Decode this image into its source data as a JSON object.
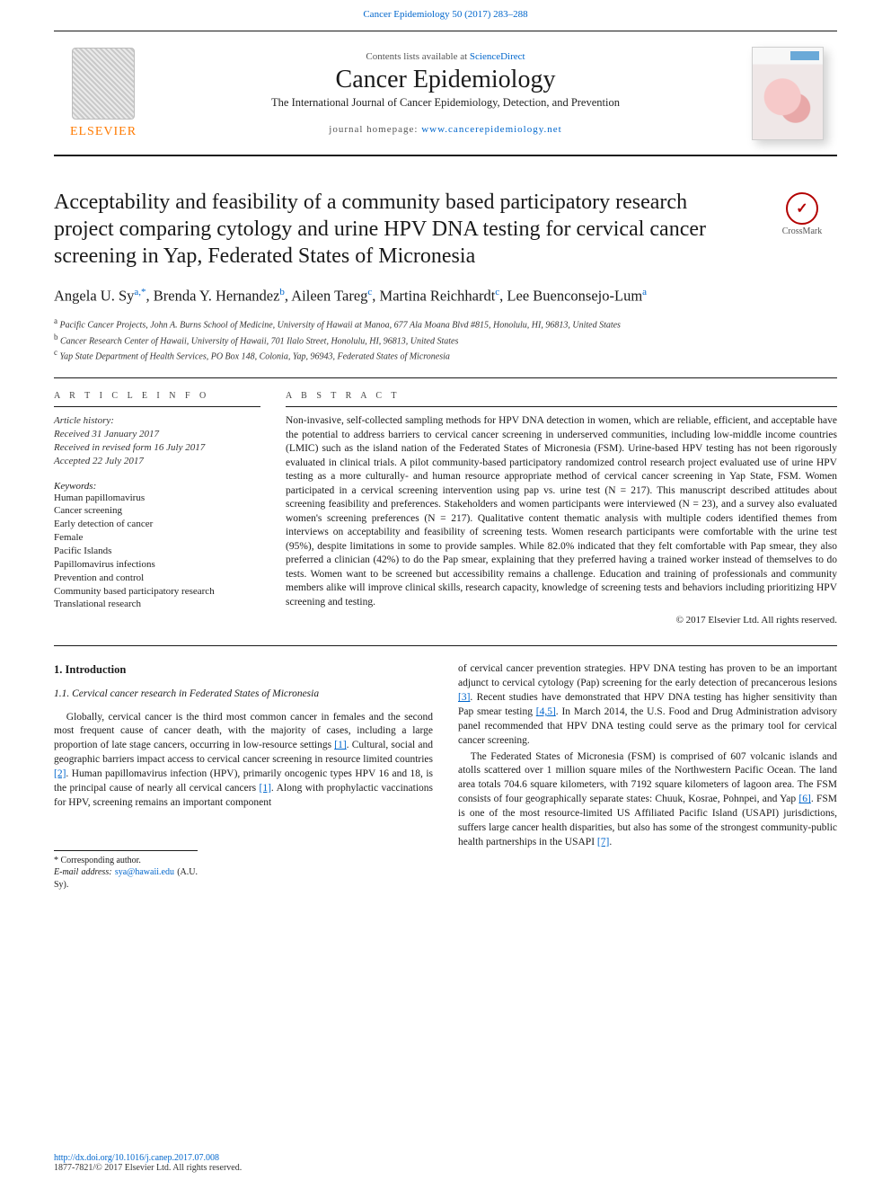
{
  "header": {
    "running_head_journal": "Cancer Epidemiology",
    "running_head_cite": "50 (2017) 283–288",
    "contents_prefix": "Contents lists available at ",
    "contents_link": "ScienceDirect",
    "journal_title": "Cancer Epidemiology",
    "journal_subtitle": "The International Journal of Cancer Epidemiology, Detection, and Prevention",
    "homepage_prefix": "journal homepage: ",
    "homepage_url": "www.cancerepidemiology.net",
    "publisher": "ELSEVIER",
    "crossmark": "CrossMark"
  },
  "article": {
    "title": "Acceptability and feasibility of a community based participatory research project comparing cytology and urine HPV DNA testing for cervical cancer screening in Yap, Federated States of Micronesia",
    "authors_html": "Angela U. Sy<sup class='sup'>a,*</sup>, Brenda Y. Hernandez<sup class='sup'>b</sup>, Aileen Tareg<sup class='sup'>c</sup>, Martina Reichhardt<sup class='sup'>c</sup>, Lee Buenconsejo-Lum<sup class='sup'>a</sup>",
    "affiliations": [
      "Pacific Cancer Projects, John A. Burns School of Medicine, University of Hawaii at Manoa, 677 Ala Moana Blvd #815, Honolulu, HI, 96813, United States",
      "Cancer Research Center of Hawaii, University of Hawaii, 701 Ilalo Street, Honolulu, HI, 96813, United States",
      "Yap State Department of Health Services, PO Box 148, Colonia, Yap, 96943, Federated States of Micronesia"
    ],
    "aff_markers": [
      "a",
      "b",
      "c"
    ]
  },
  "info": {
    "section_label": "A R T I C L E   I N F O",
    "history_label": "Article history:",
    "received": "Received 31 January 2017",
    "revised": "Received in revised form 16 July 2017",
    "accepted": "Accepted 22 July 2017",
    "keywords_label": "Keywords:",
    "keywords": [
      "Human papillomavirus",
      "Cancer screening",
      "Early detection of cancer",
      "Female",
      "Pacific Islands",
      "Papillomavirus infections",
      "Prevention and control",
      "Community based participatory research",
      "Translational research"
    ]
  },
  "abstract": {
    "section_label": "A B S T R A C T",
    "text": "Non-invasive, self-collected sampling methods for HPV DNA detection in women, which are reliable, efficient, and acceptable have the potential to address barriers to cervical cancer screening in underserved communities, including low-middle income countries (LMIC) such as the island nation of the Federated States of Micronesia (FSM). Urine-based HPV testing has not been rigorously evaluated in clinical trials. A pilot community-based participatory randomized control research project evaluated use of urine HPV testing as a more culturally- and human resource appropriate method of cervical cancer screening in Yap State, FSM. Women participated in a cervical screening intervention using pap vs. urine test (N = 217). This manuscript described attitudes about screening feasibility and preferences. Stakeholders and women participants were interviewed (N = 23), and a survey also evaluated women's screening preferences (N = 217). Qualitative content thematic analysis with multiple coders identified themes from interviews on acceptability and feasibility of screening tests. Women research participants were comfortable with the urine test (95%), despite limitations in some to provide samples. While 82.0% indicated that they felt comfortable with Pap smear, they also preferred a clinician (42%) to do the Pap smear, explaining that they preferred having a trained worker instead of themselves to do tests. Women want to be screened but accessibility remains a challenge. Education and training of professionals and community members alike will improve clinical skills, research capacity, knowledge of screening tests and behaviors including prioritizing HPV screening and testing.",
    "copyright": "© 2017 Elsevier Ltd. All rights reserved."
  },
  "body": {
    "h1": "1. Introduction",
    "h2": "1.1. Cervical cancer research in Federated States of Micronesia",
    "p1a": "Globally, cervical cancer is the third most common cancer in females and the second most frequent cause of cancer death, with the majority of cases, including a large proportion of late stage cancers, occurring in low-resource settings ",
    "r1": "[1]",
    "p1b": ". Cultural, social and geographic barriers impact access to cervical cancer screening in resource limited countries ",
    "r2": "[2]",
    "p1c": ". Human papillomavirus infection (HPV), primarily oncogenic types HPV 16 and 18, is the principal cause of nearly all cervical cancers ",
    "r1b": "[1]",
    "p1d": ". Along with prophylactic vaccinations for HPV, screening remains an important component",
    "p2a": "of cervical cancer prevention strategies. HPV DNA testing has proven to be an important adjunct to cervical cytology (Pap) screening for the early detection of precancerous lesions ",
    "r3": "[3]",
    "p2b": ". Recent studies have demonstrated that HPV DNA testing has higher sensitivity than Pap smear testing ",
    "r45": "[4,5]",
    "p2c": ". In March 2014, the U.S. Food and Drug Administration advisory panel recommended that HPV DNA testing could serve as the primary tool for cervical cancer screening.",
    "p3a": "The Federated States of Micronesia (FSM) is comprised of 607 volcanic islands and atolls scattered over 1 million square miles of the Northwestern Pacific Ocean. The land area totals 704.6 square kilometers, with 7192 square kilometers of lagoon area. The FSM consists of four geographically separate states: Chuuk, Kosrae, Pohnpei, and Yap ",
    "r6": "[6]",
    "p3b": ". FSM is one of the most resource-limited US Affiliated Pacific Island (USAPI) jurisdictions, suffers large cancer health disparities, but also has some of the strongest community-public health partnerships in the USAPI ",
    "r7": "[7]",
    "p3c": "."
  },
  "corresp": {
    "label": "* Corresponding author.",
    "email_label": "E-mail address: ",
    "email": "sya@hawaii.edu",
    "email_tail": " (A.U. Sy)."
  },
  "footer": {
    "doi": "http://dx.doi.org/10.1016/j.canep.2017.07.008",
    "issn_line": "1877-7821/© 2017 Elsevier Ltd. All rights reserved."
  },
  "colors": {
    "link": "#0066cc",
    "rule": "#1a1a1a",
    "elsevier": "#ff7a00",
    "crossmark": "#b30000"
  }
}
